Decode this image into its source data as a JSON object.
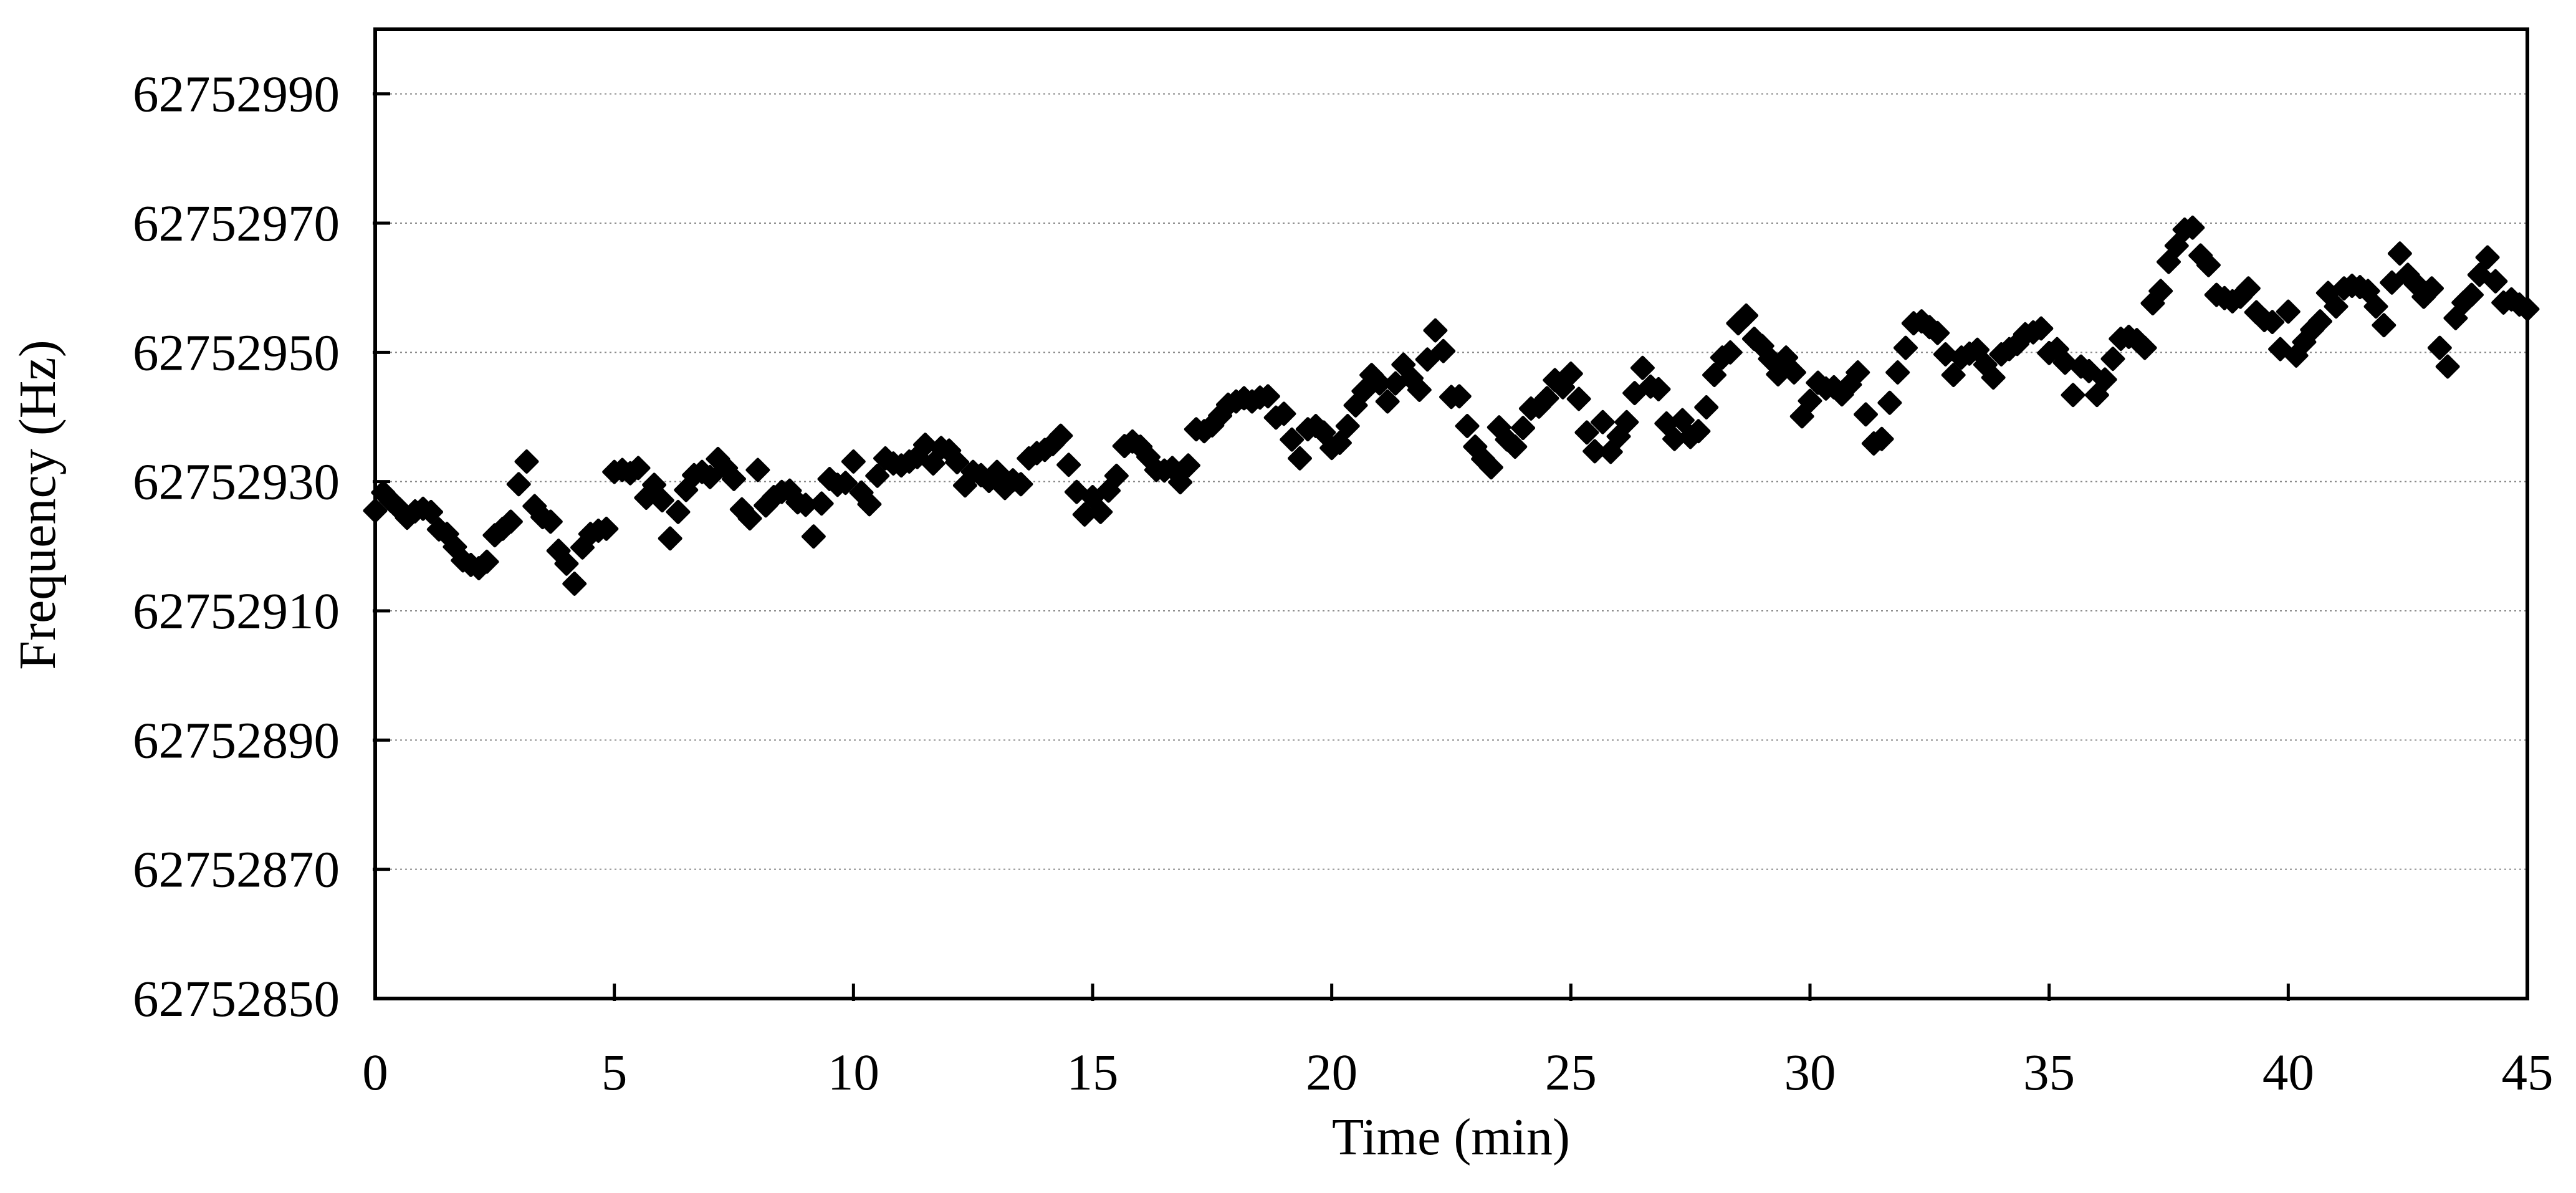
{
  "accent_colors": {
    "marker": "#000000",
    "axis": "#000000",
    "gridline": "#8a8a8a",
    "background": "#ffffff"
  },
  "chart_data": {
    "type": "scatter",
    "title": "",
    "xlabel": "Time (min)",
    "ylabel": "Frequency (Hz)",
    "xlim": [
      0,
      45
    ],
    "ylim": [
      62752850,
      62753000
    ],
    "x_ticks": [
      0,
      5,
      10,
      15,
      20,
      25,
      30,
      35,
      40,
      45
    ],
    "y_ticks": [
      62752850,
      62752870,
      62752890,
      62752910,
      62752930,
      62752950,
      62752970,
      62752990
    ],
    "grid": "horizontal-dotted",
    "legend": "none",
    "marker": "filled-diamond",
    "sampling_interval_min": 0.16667,
    "x_start_min": 0,
    "frequencies_hz": [
      62752925.5,
      62752928.3,
      62752927.0,
      62752925.8,
      62752924.4,
      62752925.4,
      62752925.8,
      62752925.3,
      62752922.6,
      62752921.9,
      62752919.9,
      62752917.8,
      62752917.1,
      62752916.6,
      62752917.6,
      62752921.7,
      62752922.7,
      62752923.8,
      62752929.6,
      62752933.1,
      62752926.2,
      62752924.5,
      62752923.8,
      62752919.3,
      62752917.3,
      62752914.2,
      62752919.8,
      62752921.9,
      62752922.4,
      62752922.7,
      62752931.5,
      62752931.8,
      62752931.3,
      62752932.1,
      62752927.5,
      62752929.5,
      62752927.1,
      62752921.2,
      62752925.3,
      62752928.7,
      62752931.0,
      62752931.5,
      62752930.7,
      62752933.5,
      62752932.1,
      62752930.4,
      62752925.7,
      62752924.3,
      62752931.8,
      62752926.3,
      62752927.6,
      62752928.4,
      62752928.6,
      62752926.8,
      62752926.4,
      62752921.5,
      62752926.6,
      62752930.4,
      62752929.5,
      62752929.8,
      62752933.1,
      62752928.3,
      62752926.5,
      62752930.9,
      62752933.6,
      62752932.8,
      62752932.5,
      62752933.1,
      62752933.8,
      62752935.7,
      62752932.8,
      62752935.2,
      62752934.8,
      62752933.0,
      62752929.4,
      62752931.5,
      62752931.0,
      62752930.1,
      62752931.5,
      62752929.0,
      62752930.2,
      62752929.6,
      62752933.6,
      62752934.4,
      62752934.9,
      62752935.8,
      62752937.1,
      62752932.6,
      62752928.4,
      62752924.9,
      62752927.6,
      62752925.3,
      62752928.6,
      62752930.9,
      62752935.5,
      62752936.2,
      62752935.4,
      62752933.8,
      62752931.8,
      62752931.7,
      62752932.1,
      62752929.9,
      62752932.5,
      62752938.1,
      62752937.8,
      62752938.7,
      62752940.2,
      62752941.9,
      62752942.4,
      62752942.9,
      62752942.4,
      62752943.0,
      62752943.2,
      62752939.9,
      62752940.5,
      62752936.5,
      62752933.6,
      62752938.1,
      62752938.6,
      62752937.6,
      62752935.2,
      62752936.0,
      62752938.6,
      62752941.8,
      62752944.0,
      62752946.5,
      62752945.2,
      62752942.4,
      62752945.2,
      62752948.1,
      62752946.0,
      62752944.2,
      62752948.9,
      62752953.4,
      62752950.2,
      62752943.1,
      62752943.2,
      62752938.6,
      62752935.4,
      62752933.5,
      62752932.2,
      62752938.4,
      62752936.5,
      62752935.4,
      62752938.3,
      62752941.3,
      62752941.6,
      62752942.9,
      62752945.7,
      62752944.6,
      62752946.7,
      62752942.8,
      62752937.6,
      62752934.7,
      62752939.2,
      62752934.6,
      62752937.0,
      62752939.2,
      62752943.7,
      62752947.6,
      62752944.7,
      62752944.3,
      62752939.0,
      62752936.6,
      62752939.5,
      62752936.9,
      62752937.8,
      62752941.5,
      62752946.5,
      62752949.2,
      62752950.0,
      62752954.5,
      62752955.7,
      62752952.1,
      62752951.0,
      62752949.0,
      62752946.6,
      62752949.2,
      62752946.9,
      62752940.1,
      62752942.5,
      62752945.3,
      62752944.4,
      62752944.6,
      62752943.5,
      62752945.0,
      62752946.9,
      62752940.4,
      62752935.9,
      62752936.6,
      62752942.2,
      62752946.9,
      62752950.7,
      62752954.5,
      62752954.8,
      62752953.9,
      62752953.0,
      62752949.7,
      62752946.5,
      62752949.2,
      62752949.8,
      62752950.4,
      62752948.1,
      62752946.1,
      62752949.7,
      62752950.5,
      62752951.3,
      62752952.8,
      62752953.1,
      62752953.7,
      62752949.9,
      62752950.5,
      62752948.4,
      62752943.4,
      62752947.8,
      62752947.1,
      62752943.4,
      62752945.8,
      62752949.0,
      62752952.1,
      62752952.4,
      62752951.9,
      62752950.7,
      62752957.6,
      62752959.5,
      62752964.0,
      62752966.5,
      62752969.0,
      62752969.3,
      62752965.0,
      62752963.5,
      62752958.9,
      62752958.4,
      62752957.9,
      62752958.6,
      62752959.9,
      62752956.2,
      62752955.0,
      62752954.7,
      62752950.5,
      62752956.3,
      62752949.5,
      62752951.6,
      62752953.5,
      62752954.8,
      62752959.2,
      62752957.1,
      62752959.9,
      62752960.3,
      62752960.1,
      62752959.5,
      62752957.1,
      62752954.2,
      62752960.8,
      62752965.3,
      62752962.0,
      62752960.6,
      62752958.6,
      62752959.9,
      62752950.7,
      62752947.8,
      62752955.3,
      62752957.7,
      62752958.9,
      62752962.0,
      62752964.7,
      62752961.0,
      62752957.7,
      62752958.2,
      62752957.4,
      62752956.7
    ]
  }
}
